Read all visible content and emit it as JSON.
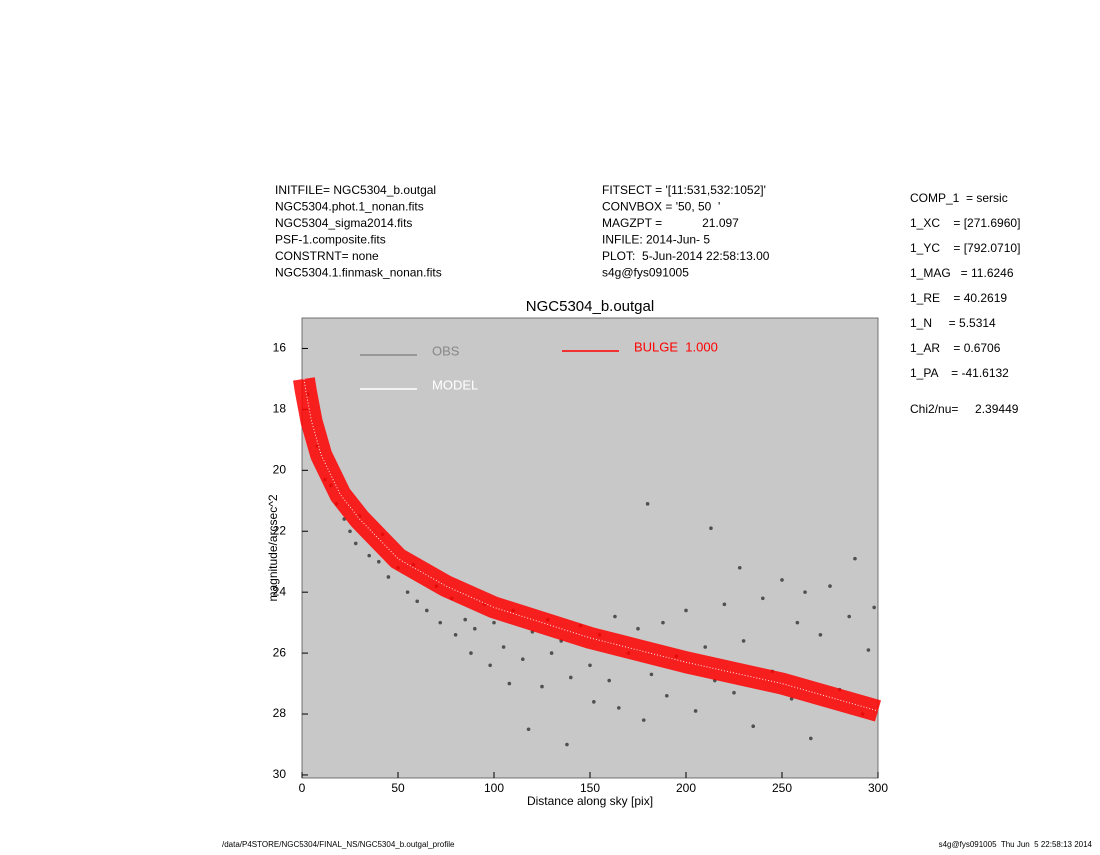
{
  "info_left": [
    "INITFILE= NGC5304_b.outgal",
    "NGC5304.phot.1_nonan.fits",
    "NGC5304_sigma2014.fits",
    "PSF-1.composite.fits",
    "CONSTRNT= none",
    "NGC5304.1.finmask_nonan.fits"
  ],
  "info_middle": [
    "FITSECT = '[11:531,532:1052]'",
    "CONVBOX = '50, 50  '",
    "MAGZPT =            21.097",
    "INFILE: 2014-Jun- 5",
    "PLOT:  5-Jun-2014 22:58:13.00",
    "s4g@fys091005"
  ],
  "info_right": [
    "COMP_1  = sersic",
    "1_XC    = [271.6960]",
    "1_YC    = [792.0710]",
    "1_MAG   = 11.6246",
    "1_RE    = 40.2619",
    "1_N     = 5.5314",
    "1_AR    = 0.6706",
    "1_PA    = -41.6132"
  ],
  "chi2": "Chi2/nu=     2.39449",
  "footer_left": "/data/P4STORE/NGC5304/FINAL_NS/NGC5304_b.outgal_profile",
  "footer_right": "s4g@fys091005  Thu Jun  5 22:58:13 2014",
  "chart_data": {
    "type": "scatter",
    "title": "NGC5304_b.outgal",
    "x_label": "Distance along sky [pix]",
    "y_label": "magnitude/arcsec^2",
    "xlim": [
      0,
      300
    ],
    "xticks": [
      0,
      50,
      100,
      150,
      200,
      250,
      300
    ],
    "ylim": [
      15,
      30.1
    ],
    "yticks": [
      16,
      18,
      20,
      22,
      24,
      26,
      28,
      30
    ],
    "y_inverted": true,
    "background": "#c8c8c8",
    "series": [
      {
        "name": "OBS",
        "type": "scatter",
        "color": "#505050",
        "x": [
          3,
          8,
          12,
          15,
          18,
          22,
          25,
          28,
          30,
          35,
          40,
          42,
          45,
          50,
          55,
          58,
          60,
          65,
          70,
          72,
          78,
          80,
          85,
          88,
          90,
          95,
          98,
          100,
          105,
          108,
          110,
          115,
          118,
          120,
          125,
          128,
          130,
          135,
          138,
          140,
          145,
          150,
          152,
          155,
          160,
          163,
          165,
          170,
          175,
          178,
          180,
          182,
          188,
          190,
          195,
          200,
          205,
          210,
          213,
          215,
          220,
          225,
          228,
          230,
          235,
          240,
          245,
          250,
          255,
          258,
          262,
          265,
          270,
          275,
          280,
          285,
          288,
          292,
          295,
          298
        ],
        "values": [
          17.5,
          19.2,
          20.3,
          20.5,
          21.1,
          21.6,
          22.0,
          22.4,
          21.5,
          22.8,
          23.0,
          22.1,
          23.5,
          23.2,
          24.0,
          23.1,
          24.3,
          24.6,
          23.8,
          25.0,
          24.2,
          25.4,
          24.9,
          26.0,
          25.2,
          24.4,
          26.4,
          25.0,
          25.8,
          27.0,
          24.6,
          26.2,
          28.5,
          25.3,
          27.1,
          24.9,
          26.0,
          25.6,
          29.0,
          26.8,
          25.1,
          26.4,
          27.6,
          25.4,
          26.9,
          24.8,
          27.8,
          26.0,
          25.2,
          28.2,
          21.1,
          26.7,
          25.0,
          27.4,
          26.1,
          24.6,
          27.9,
          25.8,
          21.9,
          26.9,
          24.4,
          27.3,
          23.2,
          25.6,
          28.4,
          24.2,
          26.6,
          23.6,
          27.5,
          25.0,
          24.0,
          28.8,
          25.4,
          23.8,
          27.2,
          24.8,
          22.9,
          28.0,
          25.9,
          24.5
        ]
      },
      {
        "name": "BULGE  1.000",
        "type": "line",
        "color": "#ff0000",
        "x": [
          1,
          2,
          5,
          10,
          20,
          30,
          50,
          75,
          100,
          150,
          200,
          250,
          300
        ],
        "values": [
          17.0,
          17.4,
          18.4,
          19.5,
          20.8,
          21.6,
          22.9,
          23.8,
          24.5,
          25.5,
          26.3,
          27.0,
          27.9
        ]
      },
      {
        "name": "MODEL",
        "type": "line",
        "color": "#ffffff",
        "x": [
          1,
          2,
          5,
          10,
          20,
          30,
          50,
          75,
          100,
          150,
          200,
          250,
          300
        ],
        "values": [
          17.0,
          17.4,
          18.4,
          19.5,
          20.8,
          21.6,
          22.9,
          23.8,
          24.5,
          25.5,
          26.3,
          27.0,
          27.9
        ]
      }
    ]
  }
}
